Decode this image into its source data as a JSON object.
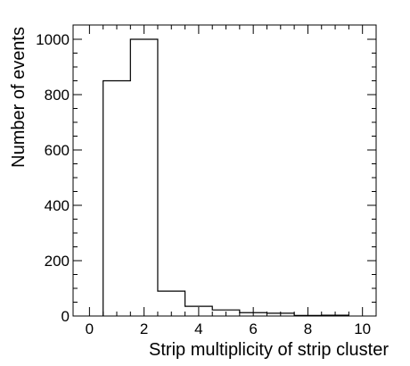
{
  "chart_data": {
    "type": "bar",
    "histogram": true,
    "title": "",
    "xlabel": "Strip multiplicity of strip cluster",
    "ylabel": "Number of events",
    "xlim": [
      -0.6,
      10.5
    ],
    "ylim": [
      0,
      1000
    ],
    "grid": false,
    "legend": "none",
    "bin_width": 1,
    "bin_centers": [
      1,
      2,
      3,
      4,
      5,
      6,
      7,
      8,
      9
    ],
    "values": [
      850,
      1000,
      90,
      35,
      22,
      12,
      10,
      2,
      3
    ],
    "xticks": [
      0,
      2,
      4,
      6,
      8,
      10
    ],
    "yticks": [
      0,
      200,
      400,
      600,
      800,
      1000
    ],
    "line_color": "#000000"
  }
}
